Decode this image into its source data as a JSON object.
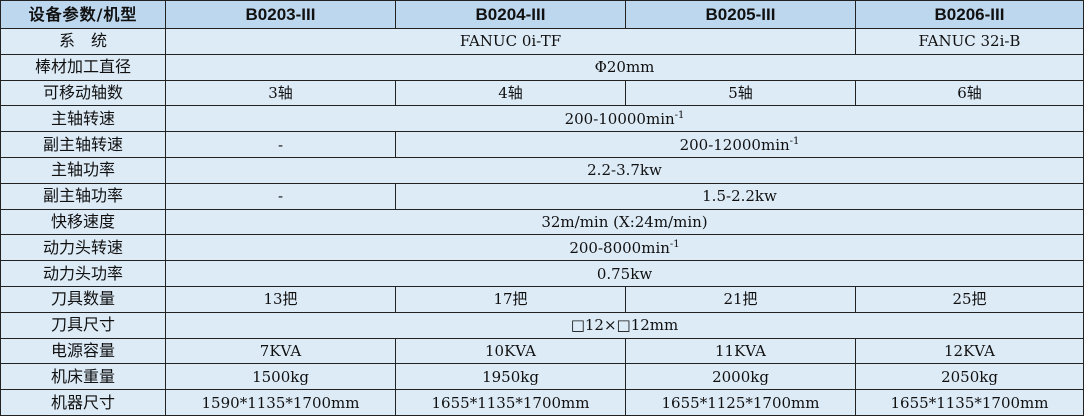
{
  "header": {
    "label": "设备参数/机型",
    "models": [
      "B0203-III",
      "B0204-III",
      "B0205-III",
      "B0206-III"
    ]
  },
  "rows": [
    {
      "label": "系　统",
      "cells": [
        {
          "text": "FANUC 0i-TF",
          "span": 3
        },
        {
          "text": "FANUC 32i-B",
          "span": 1
        }
      ]
    },
    {
      "label": "棒材加工直径",
      "cells": [
        {
          "text": "Φ20mm",
          "span": 4
        }
      ]
    },
    {
      "label": "可移动轴数",
      "cells": [
        {
          "text": "3轴",
          "span": 1
        },
        {
          "text": "4轴",
          "span": 1
        },
        {
          "text": "5轴",
          "span": 1
        },
        {
          "text": "6轴",
          "span": 1
        }
      ]
    },
    {
      "label": "主轴转速",
      "cells": [
        {
          "text": "200-10000min",
          "sup": "-1",
          "span": 4
        }
      ]
    },
    {
      "label": "副主轴转速",
      "cells": [
        {
          "text": "-",
          "span": 1
        },
        {
          "text": "200-12000min",
          "sup": "-1",
          "span": 3
        }
      ]
    },
    {
      "label": "主轴功率",
      "cells": [
        {
          "text": "2.2-3.7kw",
          "span": 4
        }
      ]
    },
    {
      "label": "副主轴功率",
      "cells": [
        {
          "text": "-",
          "span": 1
        },
        {
          "text": "1.5-2.2kw",
          "span": 3
        }
      ]
    },
    {
      "label": "快移速度",
      "cells": [
        {
          "text": "32m/min (X:24m/min)",
          "span": 4
        }
      ]
    },
    {
      "label": "动力头转速",
      "cells": [
        {
          "text": "200-8000min",
          "sup": "-1",
          "span": 4
        }
      ]
    },
    {
      "label": "动力头功率",
      "cells": [
        {
          "text": "0.75kw",
          "span": 4
        }
      ]
    },
    {
      "label": "刀具数量",
      "cells": [
        {
          "text": "13把",
          "span": 1
        },
        {
          "text": "17把",
          "span": 1
        },
        {
          "text": "21把",
          "span": 1
        },
        {
          "text": "25把",
          "span": 1
        }
      ]
    },
    {
      "label": "刀具尺寸",
      "cells": [
        {
          "text": "□12×□12mm",
          "span": 4
        }
      ]
    },
    {
      "label": "电源容量",
      "cells": [
        {
          "text": "7KVA",
          "span": 1
        },
        {
          "text": "10KVA",
          "span": 1
        },
        {
          "text": "11KVA",
          "span": 1
        },
        {
          "text": "12KVA",
          "span": 1
        }
      ]
    },
    {
      "label": "机床重量",
      "cells": [
        {
          "text": "1500kg",
          "span": 1
        },
        {
          "text": "1950kg",
          "span": 1
        },
        {
          "text": "2000kg",
          "span": 1
        },
        {
          "text": "2050kg",
          "span": 1
        }
      ]
    },
    {
      "label": "机器尺寸",
      "cells": [
        {
          "text": "1590*1135*1700mm",
          "span": 1
        },
        {
          "text": "1655*1135*1700mm",
          "span": 1
        },
        {
          "text": "1655*1125*1700mm",
          "span": 1
        },
        {
          "text": "1655*1135*1700mm",
          "span": 1
        }
      ]
    }
  ]
}
